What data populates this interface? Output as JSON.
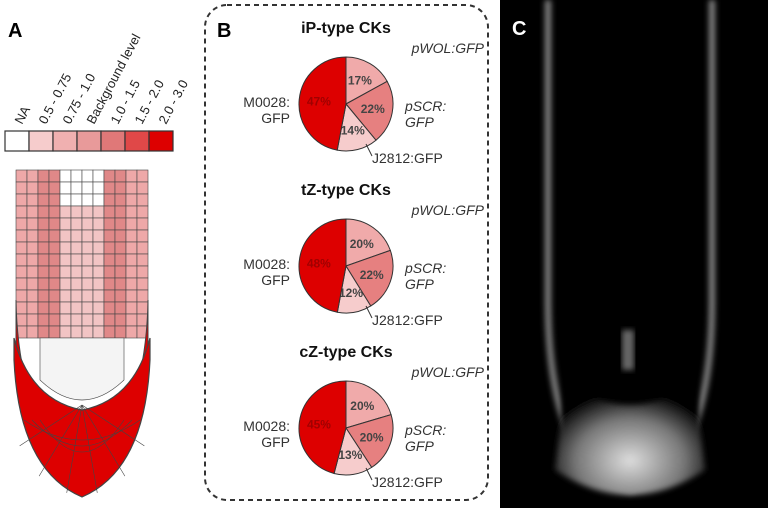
{
  "panels": {
    "a": "A",
    "b": "B",
    "c": "C"
  },
  "legend": {
    "labels": [
      "NA",
      "0.5 - 0.75",
      "0.75 - 1.0",
      "Background level",
      "1.0 - 1.5",
      "1.5 - 2.0",
      "2.0 - 3.0"
    ]
  },
  "chart_data": [
    {
      "type": "pie",
      "title": "iP-type CKs",
      "categories": [
        "pWOL:GFP",
        "pSCR: GFP",
        "J2812:GFP",
        "M0028: GFP"
      ],
      "values": [
        17,
        22,
        14,
        47
      ],
      "value_labels": [
        "17%",
        "22%",
        "14%",
        "47%"
      ],
      "colors": [
        "#f0aaaa",
        "#e68080",
        "#f6cccc",
        "#dd0000"
      ]
    },
    {
      "type": "pie",
      "title": "tZ-type CKs",
      "categories": [
        "pWOL:GFP",
        "pSCR: GFP",
        "J2812:GFP",
        "M0028: GFP"
      ],
      "values": [
        20,
        22,
        12,
        48
      ],
      "value_labels": [
        "20%",
        "22%",
        "12%",
        "48%"
      ],
      "colors": [
        "#f0aaaa",
        "#e68080",
        "#f6cccc",
        "#dd0000"
      ]
    },
    {
      "type": "pie",
      "title": "cZ-type CKs",
      "categories": [
        "pWOL:GFP",
        "pSCR: GFP",
        "J2812:GFP",
        "M0028: GFP"
      ],
      "values": [
        20,
        20,
        13,
        45
      ],
      "value_labels": [
        "20%",
        "20%",
        "13%",
        "45%"
      ],
      "colors": [
        "#f0aaaa",
        "#e68080",
        "#f6cccc",
        "#dd0000"
      ]
    }
  ]
}
